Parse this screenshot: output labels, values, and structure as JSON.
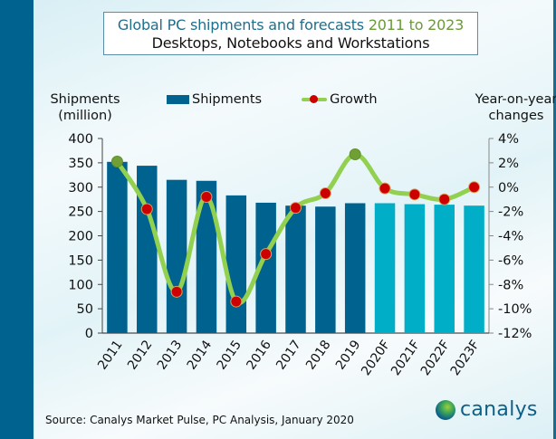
{
  "title": {
    "line1_prefix": "Global PC shipments and forecasts",
    "line1_years": "2011 to 2023",
    "line2": "Desktops, Notebooks and Workstations"
  },
  "left_axis_title": [
    "Shipments",
    "(million)"
  ],
  "right_axis_title": [
    "Year-on-year",
    "changes"
  ],
  "legend": {
    "shipments": "Shipments",
    "growth": "Growth"
  },
  "source": "Source: Canalys Market Pulse, PC Analysis, January 2020",
  "logo_text": "canalys",
  "colors": {
    "actual_bar": "#00628f",
    "forecast_bar": "#00aec7",
    "growth_line": "#92d050",
    "growth_marker_negative": "#cc0000",
    "growth_marker_positive": "#70a035",
    "band": "#00628f"
  },
  "chart_data": {
    "type": "bar",
    "title": "Global PC shipments and forecasts 2011 to 2023",
    "subtitle": "Desktops, Notebooks and Workstations",
    "categories": [
      "2011",
      "2012",
      "2013",
      "2014",
      "2015",
      "2016",
      "2017",
      "2018",
      "2019",
      "2020F",
      "2021F",
      "2022F",
      "2023F"
    ],
    "forecast_flags": [
      false,
      false,
      false,
      false,
      false,
      false,
      false,
      false,
      false,
      true,
      true,
      true,
      true
    ],
    "series": [
      {
        "name": "Shipments",
        "type": "bar",
        "axis": "left",
        "values": [
          352,
          344,
          315,
          313,
          283,
          268,
          262,
          260,
          267,
          267,
          265,
          264,
          262
        ]
      },
      {
        "name": "Growth",
        "type": "line",
        "axis": "right",
        "unit": "%",
        "values": [
          2.1,
          -1.8,
          -8.6,
          -0.8,
          -9.4,
          -5.5,
          -1.7,
          -0.5,
          2.7,
          -0.1,
          -0.6,
          -1.0,
          0.0
        ]
      }
    ],
    "ylabel": "Shipments (million)",
    "ylim": [
      0,
      400
    ],
    "yticks": [
      "0",
      "50",
      "100",
      "150",
      "200",
      "250",
      "300",
      "350",
      "400"
    ],
    "y2label": "Year-on-year changes",
    "y2lim": [
      -12,
      4
    ],
    "y2ticks": [
      "-12%",
      "-10%",
      "-8%",
      "-6%",
      "-4%",
      "-2%",
      "0%",
      "2%",
      "4%"
    ],
    "legend_position": "top-center",
    "grid": false
  }
}
